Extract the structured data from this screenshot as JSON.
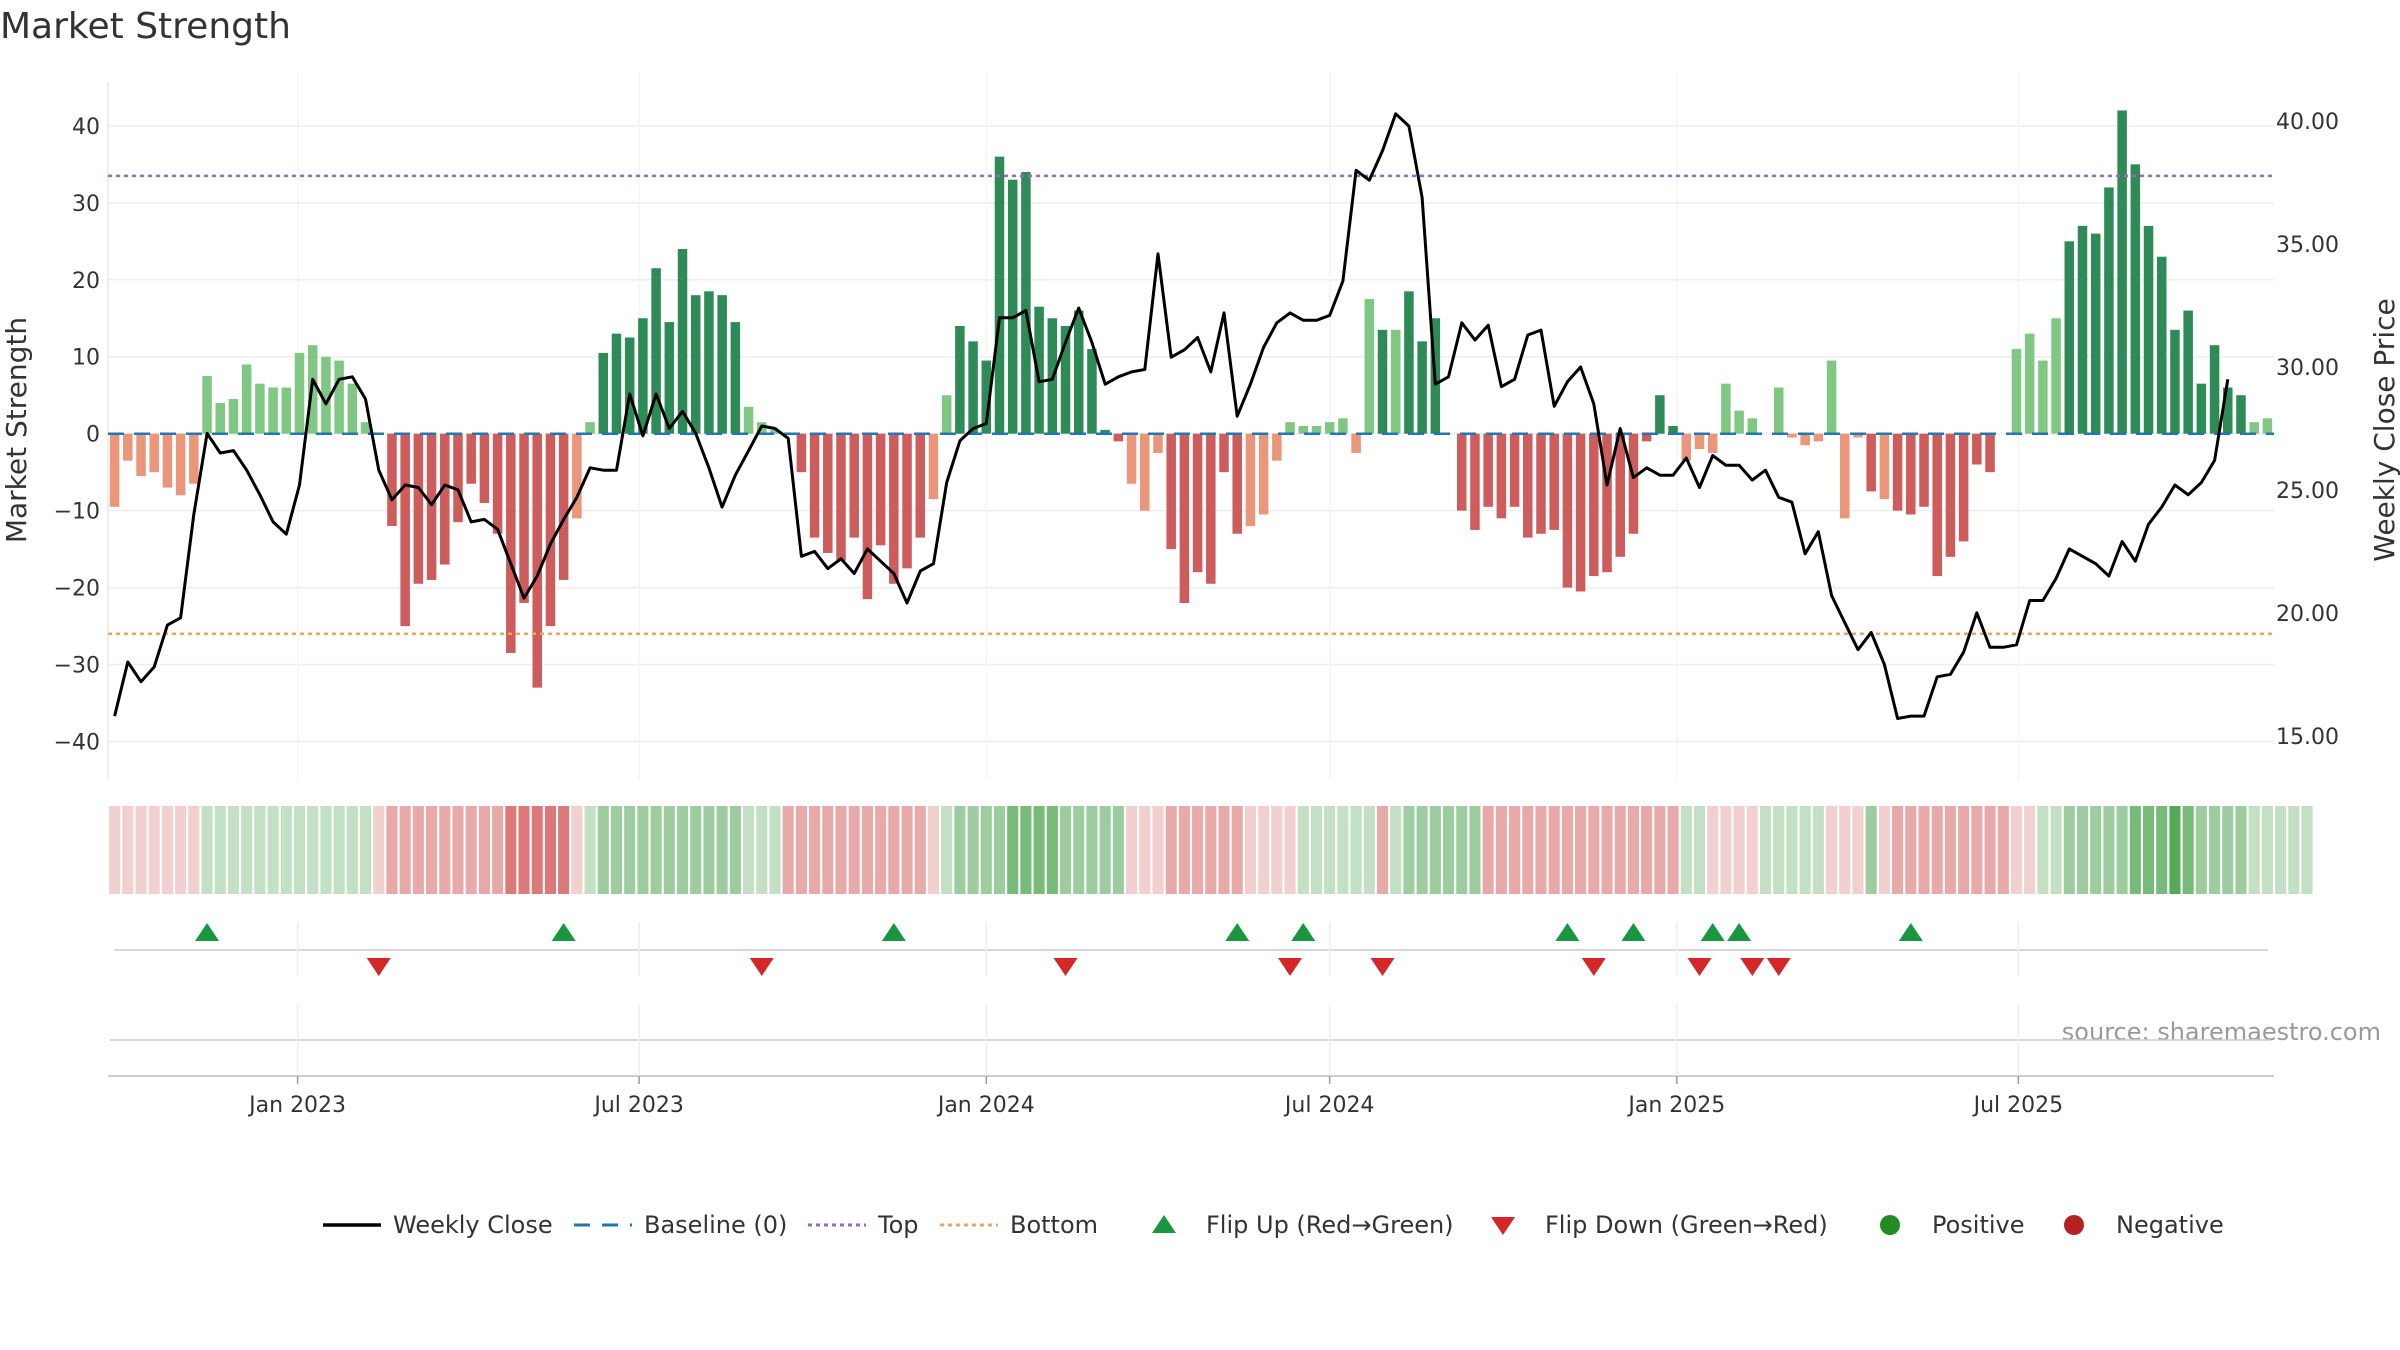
{
  "chart_data": {
    "type": "bar",
    "title": "Market Strength",
    "ylabel_left": "Market Strength",
    "ylabel_right": "Weekly Close Price",
    "source": "source: sharemaestro.com",
    "ylim_left": [
      -45,
      47
    ],
    "ylim_right": [
      13.2,
      42.0
    ],
    "yticks_left": [
      "40",
      "30",
      "20",
      "10",
      "0",
      "−10",
      "−20",
      "−30",
      "−40"
    ],
    "yticks_left_values": [
      40,
      30,
      20,
      10,
      0,
      -10,
      -20,
      -30,
      -40
    ],
    "yticks_right": [
      "40.00",
      "35.00",
      "30.00",
      "25.00",
      "20.00",
      "15.00"
    ],
    "yticks_right_values": [
      40,
      35,
      30,
      25,
      20,
      15
    ],
    "x_start": "2022-09-26",
    "x_step_days": 7,
    "x_ticks": [
      {
        "label": "Jan 2023",
        "date": "2023-01-01"
      },
      {
        "label": "Jul 2023",
        "date": "2023-07-01"
      },
      {
        "label": "Jan 2024",
        "date": "2024-01-01"
      },
      {
        "label": "Jul 2024",
        "date": "2024-07-01"
      },
      {
        "label": "Jan 2025",
        "date": "2025-01-01"
      },
      {
        "label": "Jul 2025",
        "date": "2025-07-01"
      }
    ],
    "top_line": 33.5,
    "bottom_line": -26,
    "baseline": 0,
    "strength": [
      -9.5,
      -3.5,
      -5.5,
      -5,
      -7,
      -8,
      -6.5,
      7.5,
      4,
      4.5,
      9,
      6.5,
      6,
      6,
      10.5,
      11.5,
      10,
      9.5,
      6.5,
      1.5,
      0,
      -12,
      -25,
      -19.5,
      -19,
      -17,
      -11.5,
      -6.5,
      -9,
      -13,
      -28.5,
      -22,
      -33,
      -25,
      -19,
      -11,
      1.5,
      10.5,
      13,
      12.5,
      15,
      21.5,
      14.5,
      24,
      18,
      18.5,
      18,
      14.5,
      3.5,
      1.5,
      0.5,
      0,
      -5,
      -13.5,
      -15.5,
      -16.5,
      -13.5,
      -21.5,
      -14.5,
      -19.5,
      -17.5,
      -13.5,
      -8.5,
      5,
      14,
      12,
      9.5,
      36,
      33,
      34,
      16.5,
      15,
      14,
      16,
      11,
      0.5,
      -1,
      -6.5,
      -10,
      -2.5,
      -15,
      -22,
      -18,
      -19.5,
      -5,
      -13,
      -12,
      -10.5,
      -3.5,
      1.5,
      1,
      1,
      1.5,
      2,
      -2.5,
      17.5,
      13.5,
      13.5,
      18.5,
      12,
      15,
      0,
      -10,
      -12.5,
      -9.5,
      -11,
      -9.5,
      -13.5,
      -13,
      -12.5,
      -20,
      -20.5,
      -18.5,
      -18,
      -16,
      -13,
      -1,
      5,
      1,
      -3.5,
      -2,
      -2.5,
      6.5,
      3,
      2,
      0,
      6,
      -0.5,
      -1.5,
      -1,
      9.5,
      -11,
      -0.5,
      -7.5,
      -8.5,
      -10,
      -10.5,
      -9.5,
      -18.5,
      -16,
      -14,
      -4,
      -5,
      0,
      11,
      13,
      9.5,
      15,
      25,
      27,
      26,
      32,
      42,
      35,
      27,
      23,
      13.5,
      16,
      6.5,
      11.5,
      6,
      5,
      1.5,
      2
    ],
    "close_price": [
      15.8,
      18,
      17.2,
      17.8,
      19.5,
      19.8,
      24,
      27.3,
      26.5,
      26.6,
      25.8,
      24.8,
      23.7,
      23.2,
      25.2,
      29.5,
      28.5,
      29.5,
      29.6,
      28.7,
      25.8,
      24.6,
      25.2,
      25.1,
      24.4,
      25.2,
      25,
      23.7,
      23.8,
      23.4,
      22,
      20.6,
      21.5,
      22.8,
      23.8,
      24.7,
      25.9,
      25.8,
      25.8,
      28.9,
      27.2,
      28.9,
      27.5,
      28.2,
      27.3,
      25.9,
      24.3,
      25.6,
      26.6,
      27.6,
      27.5,
      27.1,
      22.3,
      22.5,
      21.8,
      22.2,
      21.6,
      22.6,
      22.1,
      21.6,
      20.4,
      21.7,
      22,
      25.3,
      27,
      27.5,
      27.7,
      32,
      32,
      32.3,
      29.4,
      29.5,
      31,
      32.4,
      31,
      29.3,
      29.6,
      29.8,
      29.9,
      34.6,
      30.4,
      30.7,
      31.2,
      29.8,
      32.2,
      28,
      29.3,
      30.8,
      31.8,
      32.2,
      31.9,
      31.9,
      32.1,
      33.5,
      38,
      37.6,
      38.8,
      40.3,
      39.8,
      36.9,
      29.3,
      29.6,
      31.8,
      31.1,
      31.7,
      29.2,
      29.5,
      31.3,
      31.5,
      28.4,
      29.4,
      30,
      28.5,
      25.2,
      27.5,
      25.5,
      25.9,
      25.6,
      25.6,
      26.3,
      25.1,
      26.4,
      26,
      26,
      25.4,
      25.8,
      24.7,
      24.5,
      22.4,
      23.3,
      20.7,
      19.6,
      18.5,
      19.2,
      17.9,
      15.7,
      15.8,
      15.8,
      17.4,
      17.5,
      18.4,
      20,
      18.6,
      18.6,
      18.7,
      20.5,
      20.5,
      21.4,
      22.6,
      22.3,
      22,
      21.5,
      22.9,
      22.1,
      23.6,
      24.3,
      25.2,
      24.8,
      25.3,
      26.2,
      29.5
    ],
    "regime": [
      -1,
      -1,
      -1,
      -1,
      -1,
      -1,
      -1,
      1,
      1,
      1,
      1,
      1,
      1,
      1,
      1,
      1,
      1,
      1,
      1,
      1,
      -1,
      -2,
      -2,
      -2,
      -2,
      -2,
      -2,
      -2,
      -2,
      -2,
      -3,
      -3,
      -3,
      -3,
      -3,
      -1,
      1,
      2,
      2,
      2,
      2,
      2,
      2,
      2,
      2,
      2,
      2,
      2,
      1,
      1,
      1,
      -2,
      -2,
      -2,
      -2,
      -2,
      -2,
      -2,
      -2,
      -2,
      -2,
      -2,
      -1,
      1,
      2,
      2,
      2,
      2,
      3,
      3,
      3,
      3,
      2,
      2,
      2,
      2,
      2,
      -1,
      -1,
      -1,
      -2,
      -2,
      -2,
      -2,
      -2,
      -2,
      -1,
      -1,
      -1,
      -1,
      1,
      1,
      1,
      1,
      1,
      1,
      -2,
      1,
      2,
      2,
      2,
      2,
      2,
      2,
      -2,
      -2,
      -2,
      -2,
      -2,
      -2,
      -2,
      -2,
      -2,
      -2,
      -2,
      -2,
      -2,
      -2,
      -2,
      1,
      1,
      -1,
      -1,
      -1,
      -1,
      1,
      1,
      1,
      1,
      1,
      -1,
      -1,
      -1,
      2,
      -1,
      -2,
      -2,
      -2,
      -2,
      -2,
      -2,
      -2,
      -2,
      -2,
      -1,
      -1,
      1,
      1,
      2,
      2,
      2,
      2,
      2,
      3,
      3,
      3,
      4,
      3,
      2,
      2,
      2,
      2,
      1,
      1,
      1,
      1,
      1
    ],
    "flip_up_weeks": [
      7,
      34,
      59,
      85,
      90,
      110,
      115,
      121,
      123,
      136
    ],
    "flip_down_weeks": [
      20,
      49,
      72,
      89,
      96,
      112,
      120,
      124,
      126
    ],
    "legend": [
      {
        "type": "line",
        "label": "Weekly Close",
        "color": "#000000"
      },
      {
        "type": "dash",
        "label": "Baseline (0)",
        "color": "#1f77b4"
      },
      {
        "type": "dot",
        "label": "Top",
        "color": "#9966cc"
      },
      {
        "type": "dot",
        "label": "Bottom",
        "color": "#f4a261"
      },
      {
        "type": "up",
        "label": "Flip Up (Red→Green)",
        "color": "#1a9641"
      },
      {
        "type": "down",
        "label": "Flip Down (Green→Red)",
        "color": "#d62728"
      },
      {
        "type": "circle",
        "label": "Positive",
        "color": "#228b22"
      },
      {
        "type": "circle",
        "label": "Negative",
        "color": "#b22222"
      }
    ],
    "colors": {
      "pos_dark": "#2e8b57",
      "pos_light": "#81c784",
      "neg_dark": "#cd5c5c",
      "neg_light": "#e9967a",
      "price_line": "#000000",
      "top_line": "#9966cc",
      "bottom_line": "#f4a261",
      "baseline": "#1f77b4",
      "grid": "#eeeeee",
      "axis": "#cccccc"
    }
  }
}
